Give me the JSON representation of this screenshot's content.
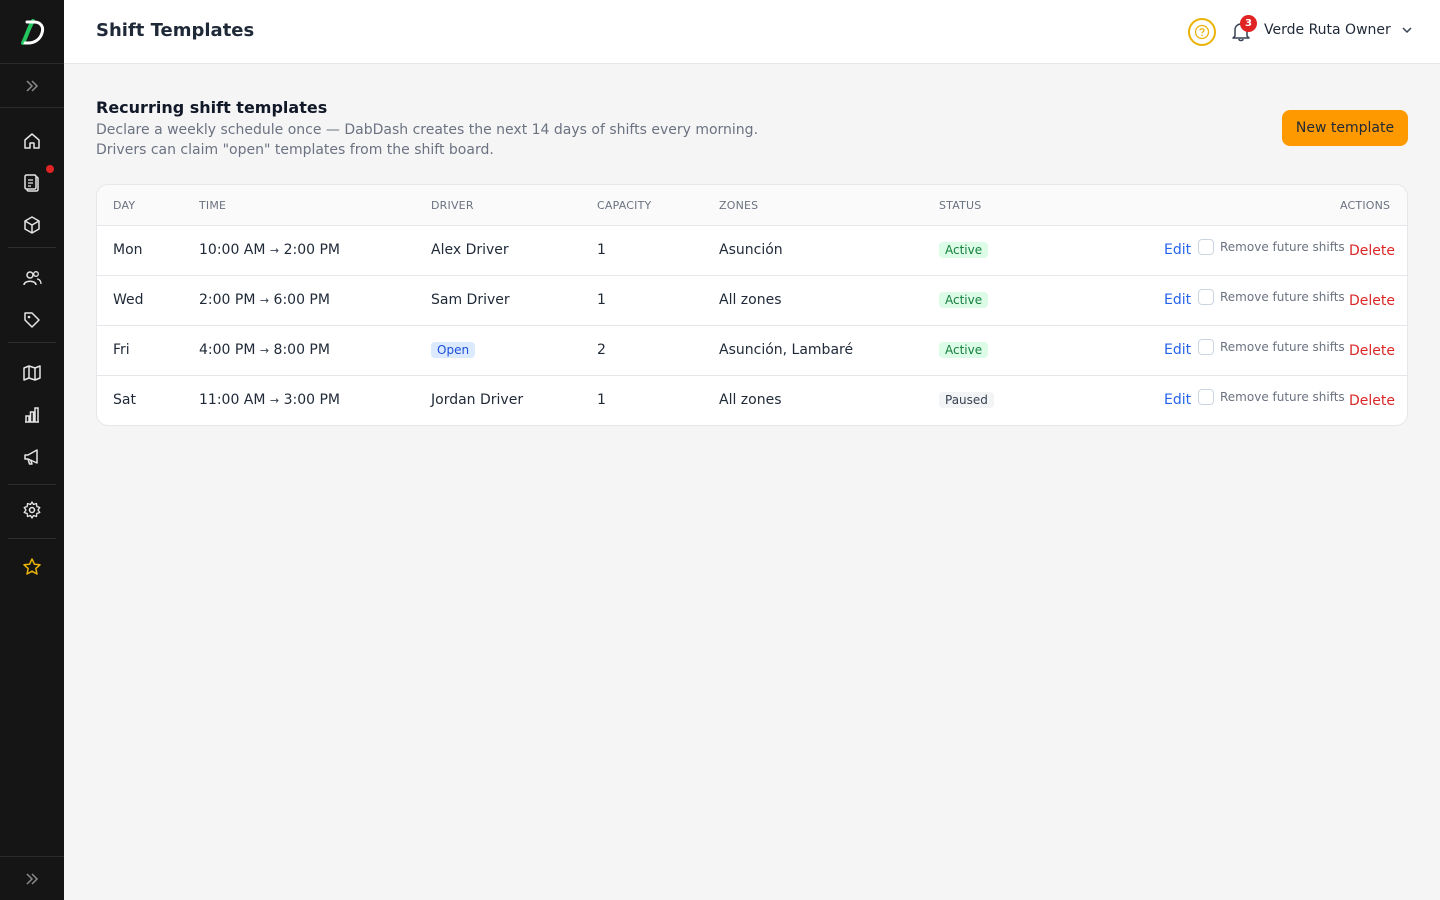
{
  "brand": {
    "logo_letter": "D",
    "accent": "#ff9900",
    "sidebar_bg": "#151515"
  },
  "sidebar": {
    "items": [
      {
        "icon": "home-icon"
      },
      {
        "icon": "clipboard-icon"
      },
      {
        "icon": "box-icon"
      },
      {
        "icon": "users-icon"
      },
      {
        "icon": "tag-icon"
      },
      {
        "icon": "map-icon"
      },
      {
        "icon": "chart-icon"
      },
      {
        "icon": "megaphone-icon"
      },
      {
        "icon": "gear-icon"
      },
      {
        "icon": "star-icon"
      }
    ]
  },
  "header": {
    "title": "Shift Templates",
    "notification_count": "3",
    "user_name": "Verde Ruta Owner"
  },
  "main": {
    "section_title": "Recurring shift templates",
    "section_desc": "Declare a weekly schedule once — DabDash creates the next 14 days of shifts every morning. Drivers can claim \"open\" templates from the shift board.",
    "new_button": "New template"
  },
  "table": {
    "columns": [
      "DAY",
      "TIME",
      "DRIVER",
      "CAPACITY",
      "ZONES",
      "STATUS",
      "ACTIONS"
    ],
    "rows": [
      {
        "day": "Mon",
        "start": "10:00 AM",
        "arrow": "→",
        "end": "2:00 PM",
        "driver": "Alex Driver",
        "capacity": "1",
        "zones": "Asunción",
        "status": "Active",
        "edit": "Edit",
        "remove": "Remove future shifts",
        "delete": "Delete"
      },
      {
        "day": "Wed",
        "start": "2:00 PM",
        "arrow": "→",
        "end": "6:00 PM",
        "driver": "Sam Driver",
        "capacity": "1",
        "zones": "All zones",
        "status": "Active",
        "edit": "Edit",
        "remove": "Remove future shifts",
        "delete": "Delete"
      },
      {
        "day": "Fri",
        "start": "4:00 PM",
        "arrow": "→",
        "end": "8:00 PM",
        "driver": "Open",
        "capacity": "2",
        "zones": "Asunción, Lambaré",
        "status": "Active",
        "edit": "Edit",
        "remove": "Remove future shifts",
        "delete": "Delete"
      },
      {
        "day": "Sat",
        "start": "11:00 AM",
        "arrow": "→",
        "end": "3:00 PM",
        "driver": "Jordan Driver",
        "capacity": "1",
        "zones": "All zones",
        "status": "Paused",
        "edit": "Edit",
        "remove": "Remove future shifts",
        "delete": "Delete"
      }
    ]
  }
}
